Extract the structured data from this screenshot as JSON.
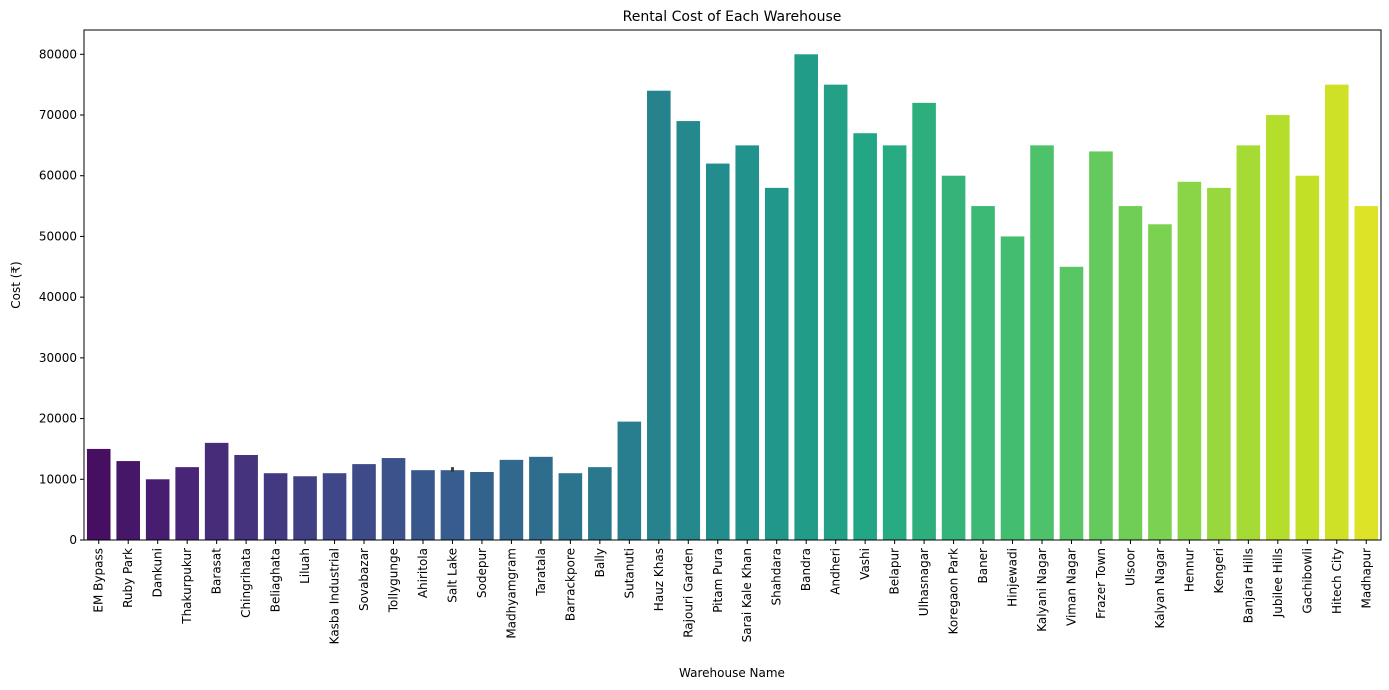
{
  "chart_data": {
    "type": "bar",
    "title": "Rental Cost of Each Warehouse",
    "xlabel": "Warehouse Name",
    "ylabel": "Cost (₹)",
    "ylim": [
      0,
      84000
    ],
    "yticks": [
      0,
      10000,
      20000,
      30000,
      40000,
      50000,
      60000,
      70000,
      80000
    ],
    "grid": false,
    "legend": "none",
    "palette": "viridis",
    "categories": [
      "EM Bypass",
      "Ruby Park",
      "Dankuni",
      "Thakurpukur",
      "Barasat",
      "Chingrihata",
      "Beliaghata",
      "Liluah",
      "Kasba Industrial",
      "Sovabazar",
      "Tollygunge",
      "Ahiritola",
      "Salt Lake",
      "Sodepur",
      "Madhyamgram",
      "Taratala",
      "Barrackpore",
      "Bally",
      "Sutanuti",
      "Hauz Khas",
      "Rajouri Garden",
      "Pitam Pura",
      "Sarai Kale Khan",
      "Shahdara",
      "Bandra",
      "Andheri",
      "Vashi",
      "Belapur",
      "Ulhasnagar",
      "Koregaon Park",
      "Baner",
      "Hinjewadi",
      "Kalyani Nagar",
      "Viman Nagar",
      "Frazer Town",
      "Ulsoor",
      "Kalyan Nagar",
      "Hennur",
      "Kengeri",
      "Banjara Hills",
      "Jubilee Hills",
      "Gachibowli",
      "Hitech City",
      "Madhapur"
    ],
    "values": [
      15000,
      13000,
      10000,
      12000,
      16000,
      14000,
      11000,
      10500,
      11000,
      12500,
      13500,
      11500,
      11500,
      11200,
      13200,
      13700,
      11000,
      12000,
      19500,
      74000,
      69000,
      62000,
      65000,
      58000,
      80000,
      75000,
      67000,
      65000,
      72000,
      60000,
      55000,
      50000,
      65000,
      45000,
      64000,
      55000,
      52000,
      59000,
      58000,
      65000,
      70000,
      60000,
      75000,
      55000
    ],
    "error_bars": [
      {
        "category": "Salt Lake",
        "low": 11200,
        "high": 12000
      }
    ]
  }
}
